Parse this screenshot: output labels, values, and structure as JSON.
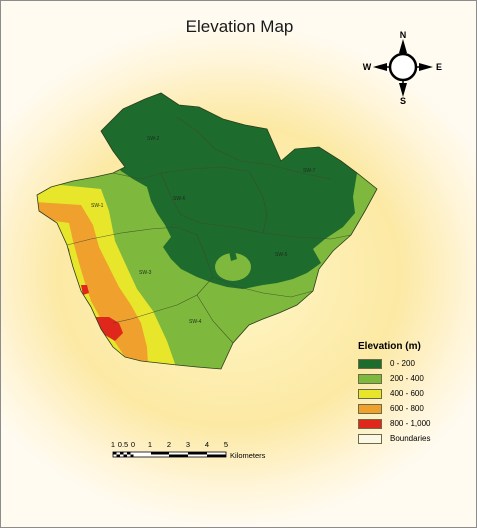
{
  "map": {
    "title": "Elevation Map",
    "compass": {
      "north": "N",
      "south": "S",
      "east": "E",
      "west": "W"
    },
    "sub_watersheds": [
      "SW-1",
      "SW-2",
      "SW-3",
      "SW-4",
      "SW-5",
      "SW-6",
      "SW-7"
    ],
    "legend": {
      "title": "Elevation (m)",
      "items": [
        {
          "label": "0 - 200",
          "color": "#1e6b2e"
        },
        {
          "label": "200 - 400",
          "color": "#7eb83c"
        },
        {
          "label": "400 - 600",
          "color": "#e8e62a"
        },
        {
          "label": "600 - 800",
          "color": "#f0a02c"
        },
        {
          "label": "800 - 1,000",
          "color": "#e0271c"
        },
        {
          "label": "Boundaries",
          "color": "#fbf8e6"
        }
      ]
    },
    "scale_bar": {
      "ticks": [
        "1",
        "0.5",
        "0",
        "1",
        "2",
        "3",
        "4",
        "5"
      ],
      "unit": "Kilometers"
    }
  }
}
